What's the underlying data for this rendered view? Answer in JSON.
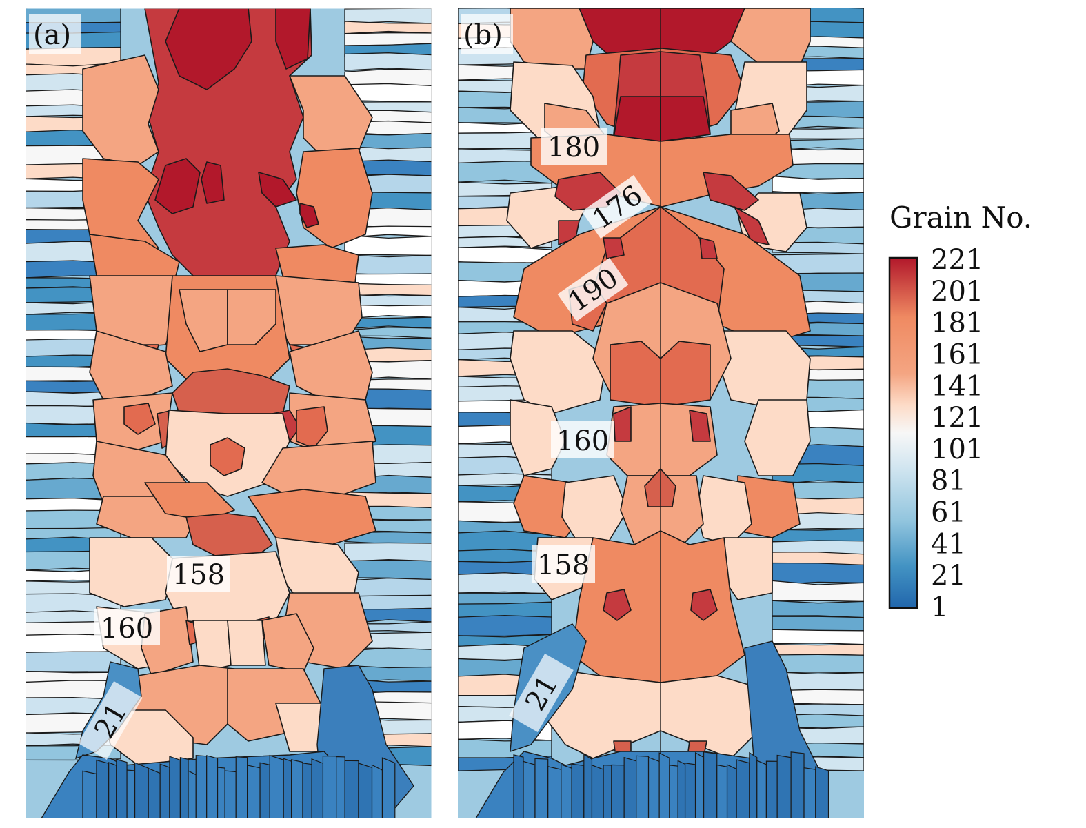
{
  "panels": [
    {
      "id": "a",
      "label": "(a)",
      "annotations": [
        {
          "text": "158",
          "rotate": 0
        },
        {
          "text": "160",
          "rotate": 0
        },
        {
          "text": "21",
          "rotate": -60
        }
      ]
    },
    {
      "id": "b",
      "label": "(b)",
      "annotations": [
        {
          "text": "180",
          "rotate": 0
        },
        {
          "text": "176",
          "rotate": -35
        },
        {
          "text": "190",
          "rotate": -35
        },
        {
          "text": "160",
          "rotate": 0
        },
        {
          "text": "158",
          "rotate": 0
        },
        {
          "text": "21",
          "rotate": -60
        }
      ]
    }
  ],
  "colorbar": {
    "title": "Grain No.",
    "ticks": [
      "221",
      "201",
      "181",
      "161",
      "141",
      "121",
      "101",
      "81",
      "61",
      "41",
      "21",
      "1"
    ],
    "colors": {
      "top": "#b2182b",
      "upper": "#ef8a62",
      "mid_upper": "#fddbc7",
      "mid": "#f7f7f7",
      "mid_lower": "#d1e5f0",
      "lower": "#67a9cf",
      "bottom": "#2166ac"
    }
  }
}
